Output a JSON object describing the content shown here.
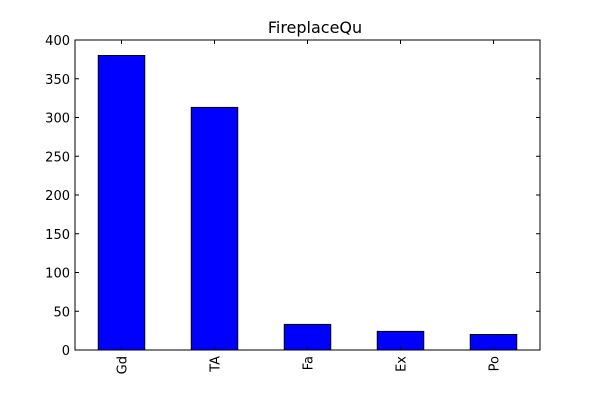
{
  "chart_data": {
    "type": "bar",
    "title": "FireplaceQu",
    "xlabel": "",
    "ylabel": "",
    "categories": [
      "Gd",
      "TA",
      "Fa",
      "Ex",
      "Po"
    ],
    "values": [
      380,
      313,
      33,
      24,
      20
    ],
    "ylim": [
      0,
      400
    ],
    "yticks": [
      0,
      50,
      100,
      150,
      200,
      250,
      300,
      350,
      400
    ],
    "bar_color": "#0000ff",
    "edge_color": "#000000",
    "grid": false,
    "legend": "none"
  }
}
